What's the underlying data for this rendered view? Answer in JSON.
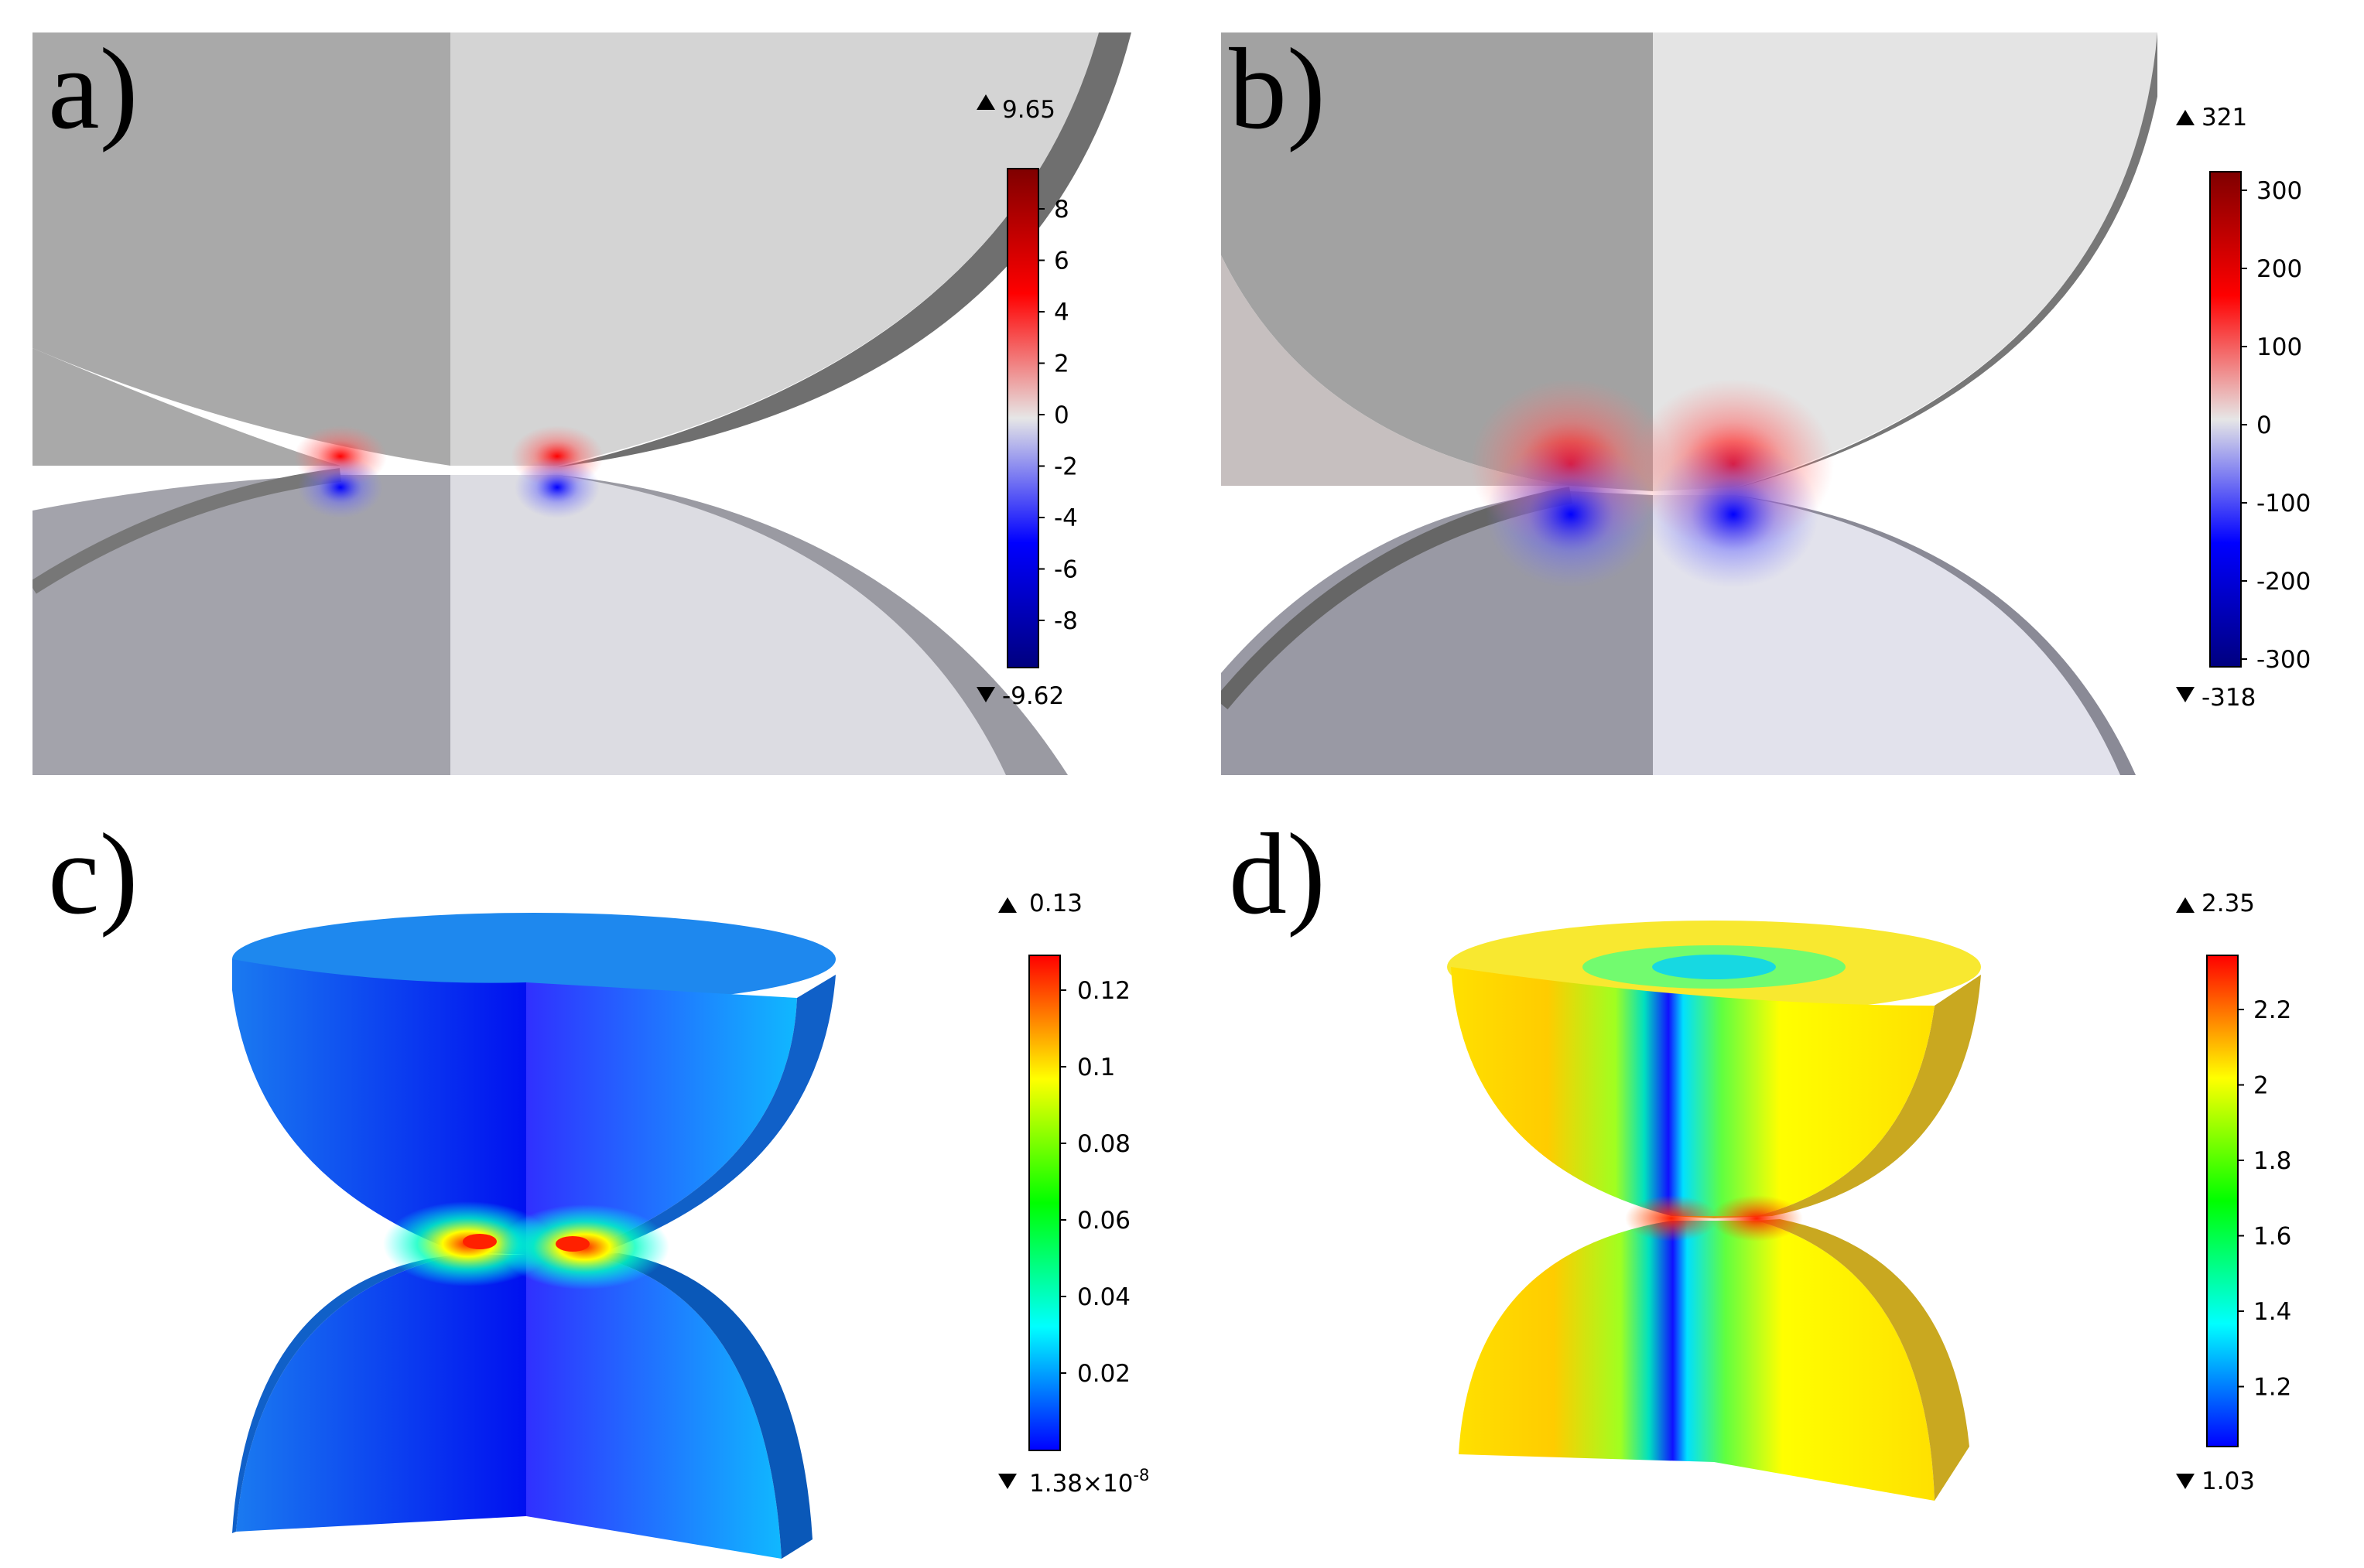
{
  "panels": {
    "a": {
      "label": "a)",
      "colorbar": {
        "max_text": "9.65",
        "min_text": "-9.62",
        "ticks": [
          "8",
          "6",
          "4",
          "2",
          "0",
          "-2",
          "-4",
          "-6",
          "-8"
        ]
      }
    },
    "b": {
      "label": "b)",
      "colorbar": {
        "max_text": "321",
        "min_text": "-318",
        "ticks": [
          "300",
          "200",
          "100",
          "0",
          "-100",
          "-200",
          "-300"
        ]
      }
    },
    "c": {
      "label": "c)",
      "colorbar": {
        "max_text": "0.13",
        "min_text": "1.38×10",
        "min_exp": "-8",
        "ticks": [
          "0.12",
          "0.1",
          "0.08",
          "0.06",
          "0.04",
          "0.02"
        ]
      }
    },
    "d": {
      "label": "d)",
      "colorbar": {
        "max_text": "2.35",
        "min_text": "1.03",
        "ticks": [
          "2.2",
          "2",
          "1.8",
          "1.6",
          "1.4",
          "1.2"
        ]
      }
    }
  },
  "colors": {
    "diverging_max": "#7f0000",
    "diverging_mid": "#e6e6e6",
    "diverging_min": "#00007f",
    "rainbow": [
      "#0000ff",
      "#00ffff",
      "#00ff00",
      "#ffff00",
      "#ff0000"
    ]
  }
}
